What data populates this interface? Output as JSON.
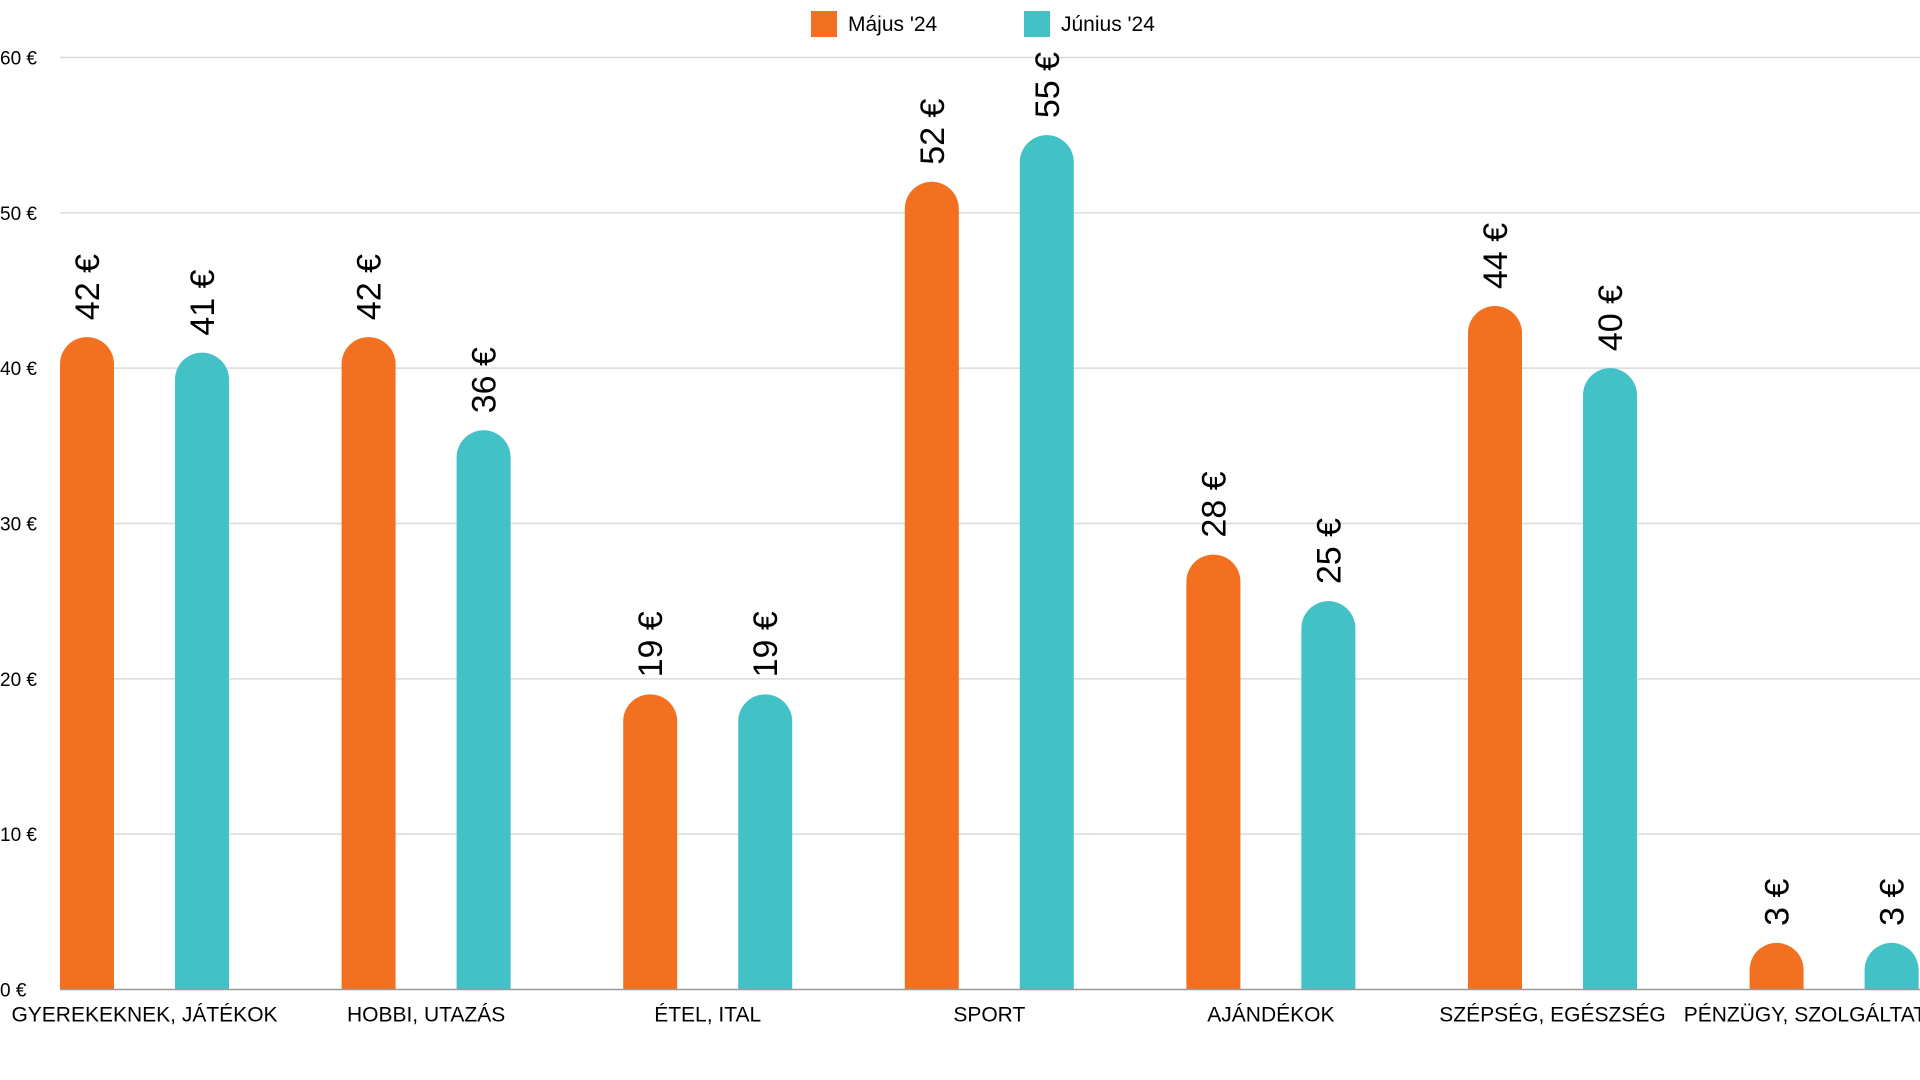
{
  "chart_data": {
    "type": "bar",
    "title": "",
    "xlabel": "",
    "ylabel": "",
    "ylim": [
      0,
      60
    ],
    "yticks": [
      "0 €",
      "10 €",
      "20 €",
      "30 €",
      "40 €",
      "50 €",
      "60 €"
    ],
    "ytick_values": [
      0,
      10,
      20,
      30,
      40,
      50,
      60
    ],
    "grid": true,
    "legend_position": "top-center",
    "categories": [
      "GYEREKEKNEK, JÁTÉKOK",
      "HOBBI, UTAZÁS",
      "ÉTEL, ITAL",
      "SPORT",
      "AJÁNDÉKOK",
      "SZÉPSÉG, EGÉSZSÉG",
      "PÉNZÜGY, SZOLGÁLTATÁSOK"
    ],
    "series": [
      {
        "name": "Május '24",
        "color": "#F37021",
        "values": [
          42,
          42,
          19,
          52,
          28,
          44,
          3
        ],
        "labels": [
          "42 €",
          "42 €",
          "19 €",
          "52 €",
          "28 €",
          "44 €",
          "3 €"
        ]
      },
      {
        "name": "Június '24",
        "color": "#42C1C7",
        "values": [
          41,
          36,
          19,
          55,
          25,
          40,
          3
        ],
        "labels": [
          "41 €",
          "36 €",
          "19 €",
          "55 €",
          "25 €",
          "40 €",
          "3 €"
        ]
      }
    ]
  }
}
